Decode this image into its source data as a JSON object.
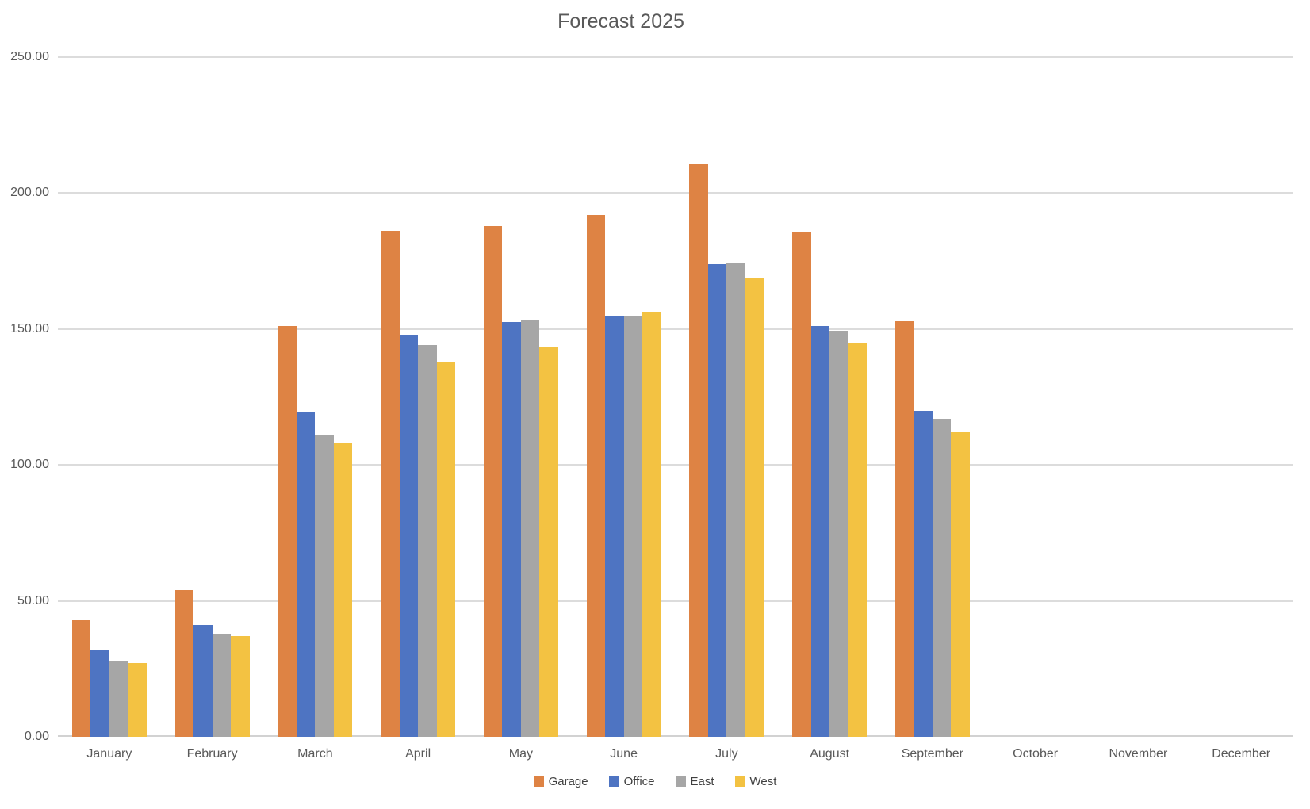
{
  "chart_data": {
    "type": "bar",
    "title": "Forecast 2025",
    "categories": [
      "January",
      "February",
      "March",
      "April",
      "May",
      "June",
      "July",
      "August",
      "September",
      "October",
      "November",
      "December"
    ],
    "series": [
      {
        "name": "Garage",
        "color": "#DE8344",
        "values": [
          43,
          54,
          151,
          186,
          188,
          192,
          210.5,
          185.5,
          153,
          0,
          0,
          0
        ]
      },
      {
        "name": "Office",
        "color": "#4E74C2",
        "values": [
          32,
          41,
          119.5,
          147.5,
          152.5,
          154.5,
          174,
          151,
          120,
          0,
          0,
          0
        ]
      },
      {
        "name": "East",
        "color": "#A6A6A6",
        "values": [
          28,
          38,
          111,
          144,
          153.5,
          155,
          174.5,
          149.5,
          117,
          0,
          0,
          0
        ]
      },
      {
        "name": "West",
        "color": "#F3C242",
        "values": [
          27,
          37,
          108,
          138,
          143.5,
          156,
          169,
          145,
          112,
          0,
          0,
          0
        ]
      }
    ],
    "ylabel": "",
    "xlabel": "",
    "ylim": [
      0,
      250
    ],
    "y_ticks": [
      {
        "value": 0,
        "label": "0.00"
      },
      {
        "value": 50,
        "label": "50.00"
      },
      {
        "value": 100,
        "label": "100.00"
      },
      {
        "value": 150,
        "label": "150.00"
      },
      {
        "value": 200,
        "label": "200.00"
      },
      {
        "value": 250,
        "label": "250.00"
      }
    ],
    "grid": true,
    "legend_position": "bottom"
  },
  "colors": {
    "background": "#FFFFFF",
    "title_text": "#595959",
    "axis_text": "#595959",
    "gridline": "#DCDCDC",
    "axis_line": "#D2D2D2"
  }
}
